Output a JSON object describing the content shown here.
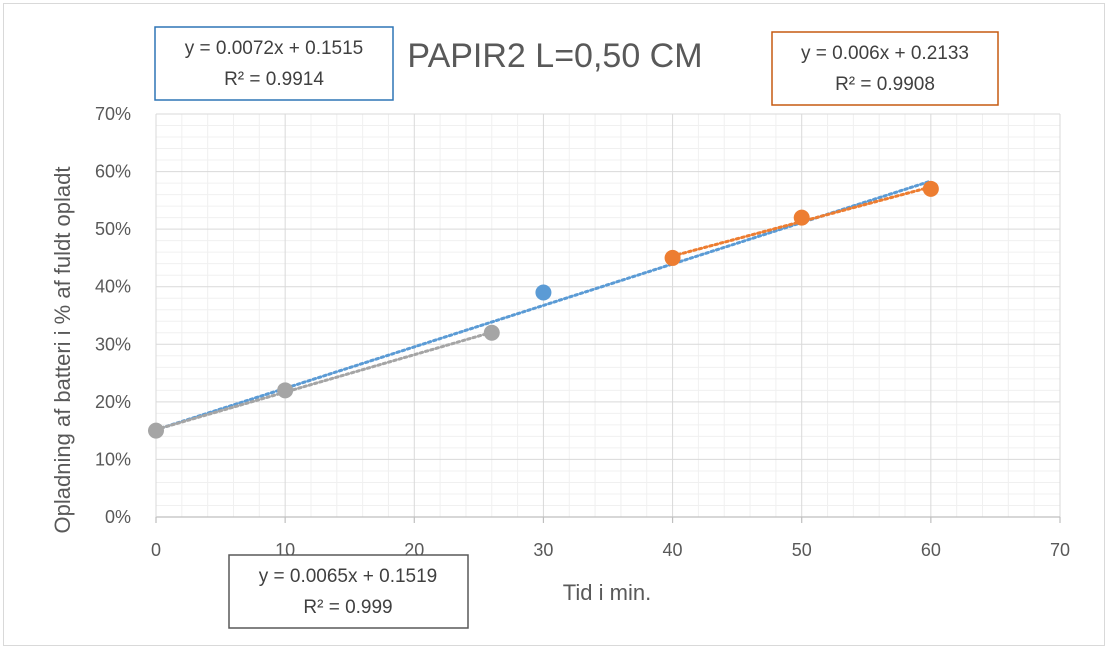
{
  "chart_data": {
    "type": "scatter",
    "title": "PAPIR2 L=0,50 CM",
    "xlabel": "Tid i min.",
    "ylabel": "Opladning af batteri i % af fuldt opladt",
    "xlim": [
      0,
      70
    ],
    "ylim": [
      0,
      0.7
    ],
    "x_ticks": [
      "0",
      "10",
      "20",
      "30",
      "40",
      "50",
      "60",
      "70"
    ],
    "y_ticks": [
      "0%",
      "10%",
      "20%",
      "30%",
      "40%",
      "50%",
      "60%",
      "70%"
    ],
    "grid": true,
    "legend": "none",
    "series": [
      {
        "color": "#5b9bd5",
        "points": [
          [
            30,
            0.39
          ]
        ],
        "trendline": {
          "slope": 0.0072,
          "intercept": 0.1515,
          "x_range": [
            0,
            60
          ],
          "style": "dotted"
        },
        "equation": {
          "line1": "y = 0.0072x + 0.1515",
          "line2": "R² = 0.9914",
          "border": "#2e75b6"
        }
      },
      {
        "color": "#ed7d31",
        "points": [
          [
            40,
            0.45
          ],
          [
            50,
            0.52
          ],
          [
            60,
            0.57
          ]
        ],
        "trendline": {
          "slope": 0.006,
          "intercept": 0.2133,
          "x_range": [
            40,
            60
          ],
          "style": "dotted"
        },
        "equation": {
          "line1": "y = 0.006x + 0.2133",
          "line2": "R² = 0.9908",
          "border": "#c55a11"
        }
      },
      {
        "color": "#a5a5a5",
        "points": [
          [
            0,
            0.15
          ],
          [
            10,
            0.22
          ],
          [
            26,
            0.32
          ]
        ],
        "trendline": {
          "slope": 0.0065,
          "intercept": 0.1519,
          "x_range": [
            0,
            26
          ],
          "style": "dotted"
        },
        "equation": {
          "line1": "y = 0.0065x + 0.1519",
          "line2": "R² = 0.999",
          "border": "#595959"
        }
      }
    ]
  }
}
